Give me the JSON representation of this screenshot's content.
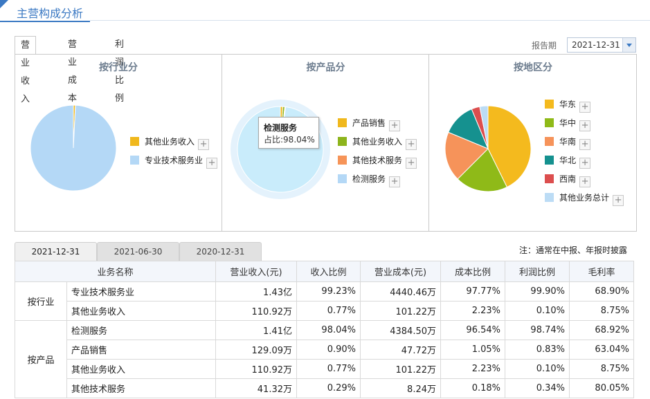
{
  "header": {
    "title": "主营构成分析"
  },
  "tabs": [
    "营业收入",
    "营业成本",
    "利润比例"
  ],
  "report": {
    "label": "报告期",
    "selected": "2021-12-31"
  },
  "panels": [
    {
      "title": "按行业分",
      "legend": [
        {
          "label": "其他业务收入",
          "color": "#f0b81d"
        },
        {
          "label": "专业技术服务业",
          "color": "#b4d8f6"
        }
      ]
    },
    {
      "title": "按产品分",
      "legend": [
        {
          "label": "产品销售",
          "color": "#f0b81d"
        },
        {
          "label": "其他业务收入",
          "color": "#8db41c"
        },
        {
          "label": "其他技术服务",
          "color": "#f69458"
        },
        {
          "label": "检测服务",
          "color": "#b4d8f6"
        }
      ]
    },
    {
      "title": "按地区分",
      "legend": [
        {
          "label": "华东",
          "color": "#f4ba1e"
        },
        {
          "label": "华中",
          "color": "#8fba18"
        },
        {
          "label": "华南",
          "color": "#f6935a"
        },
        {
          "label": "华北",
          "color": "#15918f"
        },
        {
          "label": "西南",
          "color": "#dc4e4e"
        },
        {
          "label": "其他业务总计",
          "color": "#bcdcf5"
        }
      ]
    }
  ],
  "tooltip": {
    "title": "检测服务",
    "text": "占比:98.04%"
  },
  "date_tabs": [
    "2021-12-31",
    "2021-06-30",
    "2020-12-31"
  ],
  "note": "注：通常在中报、年报时披露",
  "table": {
    "headers": [
      "业务名称",
      "营业收入(元)",
      "收入比例",
      "营业成本(元)",
      "成本比例",
      "利润比例",
      "毛利率"
    ],
    "groups": [
      {
        "name": "按行业",
        "rows": [
          [
            "专业技术服务业",
            "1.43亿",
            "99.23%",
            "4440.46万",
            "97.77%",
            "99.90%",
            "68.90%"
          ],
          [
            "其他业务收入",
            "110.92万",
            "0.77%",
            "101.22万",
            "2.23%",
            "0.10%",
            "8.75%"
          ]
        ]
      },
      {
        "name": "按产品",
        "rows": [
          [
            "检测服务",
            "1.41亿",
            "98.04%",
            "4384.50万",
            "96.54%",
            "98.74%",
            "68.92%"
          ],
          [
            "产品销售",
            "129.09万",
            "0.90%",
            "47.72万",
            "1.05%",
            "0.83%",
            "63.04%"
          ],
          [
            "其他业务收入",
            "110.92万",
            "0.77%",
            "101.22万",
            "2.23%",
            "0.10%",
            "8.75%"
          ],
          [
            "其他技术服务",
            "41.32万",
            "0.29%",
            "8.24万",
            "0.18%",
            "0.34%",
            "80.05%"
          ]
        ]
      }
    ]
  },
  "chart_data": [
    {
      "type": "pie",
      "title": "按行业分",
      "categories": [
        "其他业务收入",
        "专业技术服务业"
      ],
      "values": [
        0.77,
        99.23
      ]
    },
    {
      "type": "pie",
      "title": "按产品分",
      "categories": [
        "产品销售",
        "其他业务收入",
        "其他技术服务",
        "检测服务"
      ],
      "values": [
        0.9,
        0.77,
        0.29,
        98.04
      ]
    },
    {
      "type": "pie",
      "title": "按地区分",
      "categories": [
        "华东",
        "华中",
        "华南",
        "华北",
        "西南",
        "其他业务总计"
      ],
      "values": [
        41,
        19,
        18,
        12,
        3,
        3
      ]
    }
  ]
}
